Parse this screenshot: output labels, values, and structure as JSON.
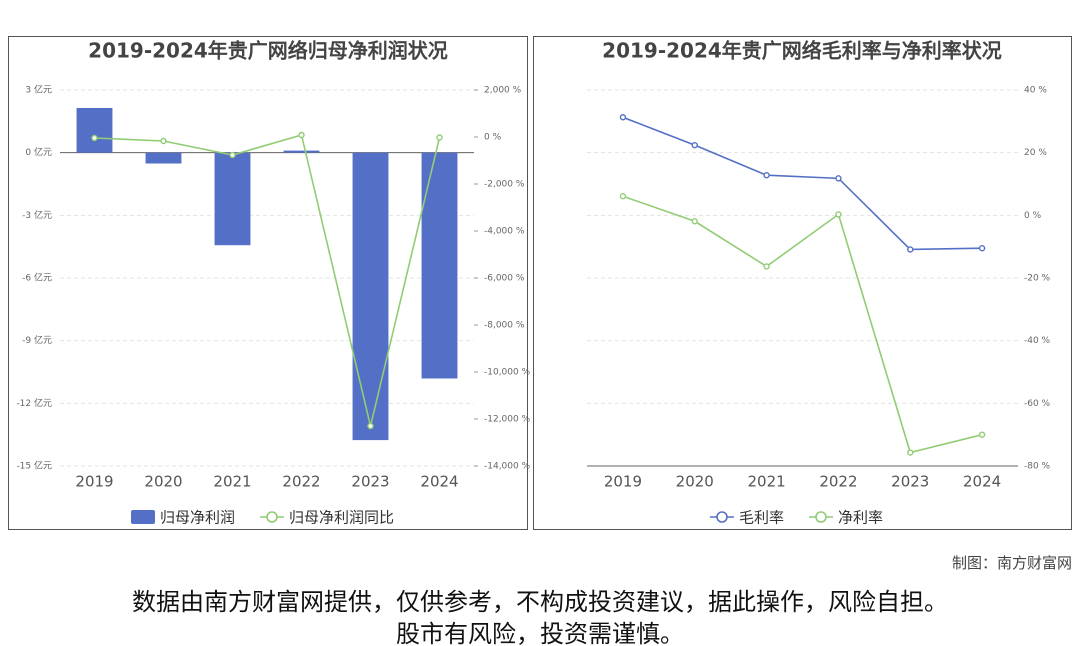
{
  "chart_data": [
    {
      "type": "bar",
      "title": "2019-2024年贵广网络归母净利润状况",
      "categories": [
        "2019",
        "2020",
        "2021",
        "2022",
        "2023",
        "2024"
      ],
      "series": [
        {
          "name": "归母净利润",
          "type": "bar",
          "color": "#5470c6",
          "values": [
            2.14,
            -0.52,
            -4.43,
            0.1,
            -13.76,
            -10.81
          ]
        },
        {
          "name": "归母净利润同比",
          "type": "line",
          "axis": "y2",
          "color": "#91cc75",
          "values": [
            -43,
            -170,
            -766,
            85,
            -12300,
            -21
          ]
        }
      ],
      "ylim": [
        -15,
        3
      ],
      "yticks": [
        {
          "value": 3,
          "label": "3 亿元"
        },
        {
          "value": 0,
          "label": "0 亿元"
        },
        {
          "value": -3,
          "label": "-3 亿元"
        },
        {
          "value": -6,
          "label": "-6 亿元"
        },
        {
          "value": -9,
          "label": "-9 亿元"
        },
        {
          "value": -12,
          "label": "-12 亿元"
        },
        {
          "value": -15,
          "label": "-15 亿元"
        }
      ],
      "y2lim": [
        -14000,
        2000
      ],
      "y2ticks": [
        {
          "value": 2000,
          "label": "2,000 %"
        },
        {
          "value": 0,
          "label": "0 %"
        },
        {
          "value": -2000,
          "label": "-2,000 %"
        },
        {
          "value": -4000,
          "label": "-4,000 %"
        },
        {
          "value": -6000,
          "label": "-6,000 %"
        },
        {
          "value": -8000,
          "label": "-8,000 %"
        },
        {
          "value": -10000,
          "label": "-10,000 %"
        },
        {
          "value": -12000,
          "label": "-12,000 %"
        },
        {
          "value": -14000,
          "label": "-14,000 %"
        }
      ],
      "grid": true
    },
    {
      "type": "line",
      "title": "2019-2024年贵广网络毛利率与净利率状况",
      "categories": [
        "2019",
        "2020",
        "2021",
        "2022",
        "2023",
        "2024"
      ],
      "series": [
        {
          "name": "毛利率",
          "type": "line",
          "color": "#5470c6",
          "values": [
            31.3,
            22.4,
            12.8,
            11.8,
            -10.9,
            -10.5
          ]
        },
        {
          "name": "净利率",
          "type": "line",
          "color": "#91cc75",
          "values": [
            6.1,
            -1.9,
            -16.3,
            0.3,
            -75.7,
            -70
          ]
        }
      ],
      "ylim": [
        -80,
        40
      ],
      "y_axis_side": "right",
      "yticks": [
        {
          "value": 40,
          "label": "40 %"
        },
        {
          "value": 20,
          "label": "20 %"
        },
        {
          "value": 0,
          "label": "0 %"
        },
        {
          "value": -20,
          "label": "-20 %"
        },
        {
          "value": -40,
          "label": "-40 %"
        },
        {
          "value": -60,
          "label": "-60 %"
        },
        {
          "value": -80,
          "label": "-80 %"
        }
      ],
      "grid": true
    }
  ],
  "credit": "制图：南方财富网",
  "disclaimer": [
    "数据由南方财富网提供，仅供参考，不构成投资建议，据此操作，风险自担。",
    "股市有风险，投资需谨慎。"
  ]
}
